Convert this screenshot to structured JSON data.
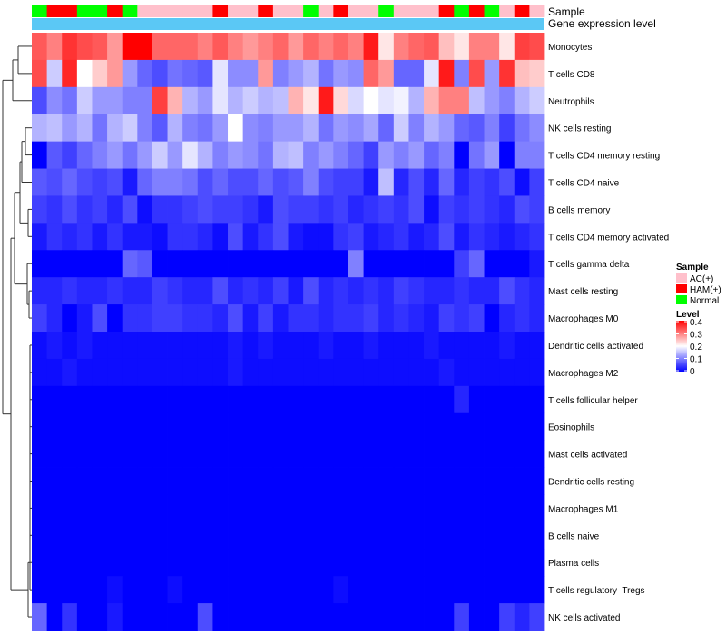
{
  "chart_data": {
    "type": "heatmap",
    "annotation_labels": {
      "sample": "Sample",
      "gene_expression": "Gene expression level"
    },
    "rows": [
      "Monocytes",
      "T cells CD8",
      "Neutrophils",
      "NK cells resting",
      "T cells CD4 memory resting",
      "T cells CD4 naive",
      "B cells memory",
      "T cells CD4 memory activated",
      "T cells gamma delta",
      "Mast cells resting",
      "Macrophages M0",
      "Dendritic cells activated",
      "Macrophages M2",
      "T cells follicular helper",
      "Eosinophils",
      "Mast cells activated",
      "Dendritic cells resting",
      "Macrophages M1",
      "B cells naive",
      "Plasma cells",
      "T cells regulatory  Tregs",
      "NK cells activated"
    ],
    "samples": [
      "Normal",
      "HAM(+)",
      "HAM(+)",
      "Normal",
      "Normal",
      "HAM(+)",
      "Normal",
      "AC(+)",
      "AC(+)",
      "AC(+)",
      "AC(+)",
      "AC(+)",
      "HAM(+)",
      "AC(+)",
      "AC(+)",
      "HAM(+)",
      "AC(+)",
      "AC(+)",
      "Normal",
      "AC(+)",
      "HAM(+)",
      "AC(+)",
      "AC(+)",
      "Normal",
      "AC(+)",
      "AC(+)",
      "AC(+)",
      "HAM(+)",
      "Normal",
      "HAM(+)",
      "Normal",
      "AC(+)",
      "HAM(+)",
      "AC(+)"
    ],
    "sample_colors": {
      "AC(+)": "#ffc0cb",
      "HAM(+)": "#ff0000",
      "Normal": "#00ff00"
    },
    "gene_expression_color": "#5bc8f5",
    "values": [
      [
        0.33,
        0.3,
        0.36,
        0.34,
        0.33,
        0.28,
        0.4,
        0.4,
        0.32,
        0.32,
        0.32,
        0.3,
        0.33,
        0.3,
        0.28,
        0.3,
        0.32,
        0.28,
        0.32,
        0.3,
        0.32,
        0.3,
        0.38,
        0.22,
        0.3,
        0.32,
        0.33,
        0.25,
        0.22,
        0.3,
        0.3,
        0.22,
        0.35,
        0.34
      ],
      [
        0.34,
        0.16,
        0.37,
        0.2,
        0.24,
        0.28,
        0.12,
        0.08,
        0.06,
        0.09,
        0.08,
        0.07,
        0.18,
        0.11,
        0.11,
        0.28,
        0.1,
        0.12,
        0.14,
        0.09,
        0.12,
        0.11,
        0.32,
        0.28,
        0.08,
        0.08,
        0.18,
        0.38,
        0.1,
        0.34,
        0.12,
        0.36,
        0.25,
        0.24
      ],
      [
        0.06,
        0.11,
        0.09,
        0.16,
        0.12,
        0.12,
        0.1,
        0.1,
        0.35,
        0.26,
        0.14,
        0.12,
        0.18,
        0.14,
        0.16,
        0.14,
        0.15,
        0.26,
        0.22,
        0.38,
        0.23,
        0.17,
        0.2,
        0.18,
        0.19,
        0.14,
        0.26,
        0.3,
        0.3,
        0.15,
        0.12,
        0.1,
        0.14,
        0.16
      ],
      [
        0.14,
        0.15,
        0.12,
        0.14,
        0.09,
        0.14,
        0.16,
        0.1,
        0.07,
        0.14,
        0.1,
        0.09,
        0.12,
        0.2,
        0.11,
        0.1,
        0.12,
        0.12,
        0.14,
        0.09,
        0.12,
        0.11,
        0.13,
        0.08,
        0.16,
        0.1,
        0.14,
        0.12,
        0.08,
        0.07,
        0.1,
        0.05,
        0.09,
        0.11
      ],
      [
        0.0,
        0.07,
        0.05,
        0.08,
        0.1,
        0.12,
        0.09,
        0.12,
        0.16,
        0.12,
        0.18,
        0.14,
        0.1,
        0.12,
        0.11,
        0.09,
        0.14,
        0.15,
        0.1,
        0.12,
        0.1,
        0.08,
        0.05,
        0.12,
        0.1,
        0.12,
        0.08,
        0.1,
        0.0,
        0.09,
        0.12,
        0.0,
        0.1,
        0.1
      ],
      [
        0.07,
        0.06,
        0.08,
        0.06,
        0.05,
        0.06,
        0.02,
        0.08,
        0.1,
        0.1,
        0.09,
        0.06,
        0.08,
        0.06,
        0.06,
        0.08,
        0.06,
        0.07,
        0.1,
        0.06,
        0.05,
        0.05,
        0.02,
        0.15,
        0.03,
        0.06,
        0.03,
        0.08,
        0.03,
        0.05,
        0.04,
        0.06,
        0.01,
        0.05
      ],
      [
        0.05,
        0.04,
        0.06,
        0.04,
        0.05,
        0.03,
        0.06,
        0.01,
        0.04,
        0.04,
        0.05,
        0.06,
        0.05,
        0.05,
        0.04,
        0.02,
        0.06,
        0.05,
        0.05,
        0.04,
        0.05,
        0.03,
        0.04,
        0.05,
        0.04,
        0.06,
        0.01,
        0.05,
        0.04,
        0.05,
        0.04,
        0.03,
        0.06,
        0.05
      ],
      [
        0.02,
        0.04,
        0.03,
        0.04,
        0.02,
        0.04,
        0.02,
        0.02,
        0.01,
        0.04,
        0.04,
        0.03,
        0.01,
        0.06,
        0.02,
        0.04,
        0.06,
        0.02,
        0.01,
        0.01,
        0.04,
        0.05,
        0.02,
        0.03,
        0.04,
        0.02,
        0.03,
        0.06,
        0.02,
        0.04,
        0.03,
        0.02,
        0.03,
        0.04
      ],
      [
        0.0,
        0.0,
        0.0,
        0.0,
        0.0,
        0.0,
        0.08,
        0.07,
        0.0,
        0.0,
        0.0,
        0.0,
        0.0,
        0.0,
        0.0,
        0.0,
        0.0,
        0.0,
        0.0,
        0.0,
        0.0,
        0.1,
        0.0,
        0.0,
        0.0,
        0.0,
        0.0,
        0.0,
        0.05,
        0.08,
        0.0,
        0.0,
        0.0,
        0.02
      ],
      [
        0.03,
        0.03,
        0.04,
        0.03,
        0.03,
        0.04,
        0.03,
        0.03,
        0.05,
        0.04,
        0.03,
        0.03,
        0.06,
        0.03,
        0.04,
        0.03,
        0.05,
        0.02,
        0.06,
        0.03,
        0.04,
        0.03,
        0.04,
        0.03,
        0.05,
        0.04,
        0.03,
        0.03,
        0.04,
        0.03,
        0.03,
        0.06,
        0.04,
        0.03
      ],
      [
        0.05,
        0.03,
        0.0,
        0.02,
        0.06,
        0.0,
        0.04,
        0.04,
        0.05,
        0.05,
        0.04,
        0.04,
        0.03,
        0.06,
        0.02,
        0.05,
        0.02,
        0.04,
        0.04,
        0.03,
        0.04,
        0.04,
        0.05,
        0.03,
        0.04,
        0.03,
        0.02,
        0.05,
        0.04,
        0.05,
        0.0,
        0.03,
        0.04,
        0.03
      ],
      [
        0.01,
        0.02,
        0.01,
        0.02,
        0.01,
        0.01,
        0.01,
        0.01,
        0.01,
        0.01,
        0.01,
        0.01,
        0.01,
        0.02,
        0.01,
        0.02,
        0.01,
        0.01,
        0.01,
        0.02,
        0.01,
        0.01,
        0.02,
        0.01,
        0.01,
        0.01,
        0.02,
        0.01,
        0.01,
        0.01,
        0.01,
        0.02,
        0.01,
        0.01
      ],
      [
        0.01,
        0.01,
        0.02,
        0.01,
        0.01,
        0.01,
        0.01,
        0.01,
        0.01,
        0.01,
        0.01,
        0.01,
        0.01,
        0.02,
        0.01,
        0.01,
        0.01,
        0.01,
        0.01,
        0.01,
        0.01,
        0.01,
        0.01,
        0.01,
        0.01,
        0.01,
        0.01,
        0.02,
        0.01,
        0.01,
        0.01,
        0.01,
        0.01,
        0.01
      ],
      [
        0.0,
        0.0,
        0.0,
        0.0,
        0.0,
        0.0,
        0.0,
        0.0,
        0.0,
        0.0,
        0.0,
        0.0,
        0.0,
        0.0,
        0.0,
        0.0,
        0.0,
        0.0,
        0.0,
        0.0,
        0.0,
        0.0,
        0.0,
        0.0,
        0.0,
        0.0,
        0.0,
        0.0,
        0.03,
        0.0,
        0.0,
        0.0,
        0.0,
        0.0
      ],
      [
        0.0,
        0.0,
        0.0,
        0.0,
        0.0,
        0.0,
        0.0,
        0.0,
        0.0,
        0.0,
        0.0,
        0.0,
        0.0,
        0.0,
        0.0,
        0.0,
        0.0,
        0.0,
        0.0,
        0.0,
        0.0,
        0.0,
        0.0,
        0.0,
        0.0,
        0.0,
        0.0,
        0.0,
        0.0,
        0.0,
        0.0,
        0.0,
        0.0,
        0.0
      ],
      [
        0.0,
        0.0,
        0.0,
        0.0,
        0.0,
        0.0,
        0.0,
        0.0,
        0.0,
        0.0,
        0.0,
        0.0,
        0.0,
        0.0,
        0.0,
        0.0,
        0.0,
        0.0,
        0.0,
        0.0,
        0.0,
        0.0,
        0.0,
        0.0,
        0.0,
        0.0,
        0.0,
        0.0,
        0.0,
        0.0,
        0.0,
        0.0,
        0.0,
        0.0
      ],
      [
        0.0,
        0.0,
        0.0,
        0.0,
        0.0,
        0.0,
        0.0,
        0.0,
        0.0,
        0.0,
        0.0,
        0.0,
        0.0,
        0.0,
        0.0,
        0.0,
        0.0,
        0.0,
        0.0,
        0.0,
        0.0,
        0.0,
        0.0,
        0.0,
        0.0,
        0.0,
        0.0,
        0.0,
        0.0,
        0.0,
        0.0,
        0.0,
        0.0,
        0.0
      ],
      [
        0.0,
        0.0,
        0.0,
        0.0,
        0.0,
        0.0,
        0.0,
        0.0,
        0.0,
        0.0,
        0.0,
        0.0,
        0.0,
        0.0,
        0.0,
        0.0,
        0.0,
        0.0,
        0.0,
        0.0,
        0.0,
        0.0,
        0.0,
        0.0,
        0.0,
        0.0,
        0.0,
        0.0,
        0.0,
        0.0,
        0.0,
        0.0,
        0.0,
        0.0
      ],
      [
        0.0,
        0.0,
        0.0,
        0.0,
        0.0,
        0.0,
        0.0,
        0.0,
        0.0,
        0.0,
        0.0,
        0.0,
        0.0,
        0.0,
        0.0,
        0.0,
        0.0,
        0.0,
        0.0,
        0.0,
        0.0,
        0.0,
        0.0,
        0.0,
        0.0,
        0.0,
        0.0,
        0.0,
        0.0,
        0.0,
        0.0,
        0.0,
        0.0,
        0.0
      ],
      [
        0.0,
        0.0,
        0.0,
        0.0,
        0.0,
        0.0,
        0.0,
        0.0,
        0.0,
        0.0,
        0.0,
        0.0,
        0.0,
        0.0,
        0.0,
        0.0,
        0.0,
        0.0,
        0.0,
        0.0,
        0.0,
        0.0,
        0.0,
        0.0,
        0.0,
        0.0,
        0.0,
        0.0,
        0.0,
        0.0,
        0.0,
        0.0,
        0.0,
        0.0
      ],
      [
        0.0,
        0.0,
        0.0,
        0.0,
        0.0,
        0.01,
        0.0,
        0.0,
        0.0,
        0.01,
        0.0,
        0.0,
        0.0,
        0.0,
        0.0,
        0.0,
        0.0,
        0.0,
        0.0,
        0.0,
        0.01,
        0.0,
        0.0,
        0.0,
        0.0,
        0.0,
        0.0,
        0.0,
        0.0,
        0.0,
        0.0,
        0.0,
        0.0,
        0.0
      ],
      [
        0.08,
        0.0,
        0.04,
        0.0,
        0.0,
        0.02,
        0.0,
        0.0,
        0.0,
        0.0,
        0.0,
        0.06,
        0.0,
        0.0,
        0.0,
        0.0,
        0.0,
        0.0,
        0.0,
        0.0,
        0.0,
        0.0,
        0.0,
        0.0,
        0.0,
        0.0,
        0.0,
        0.0,
        0.05,
        0.0,
        0.0,
        0.05,
        0.03,
        0.05
      ]
    ],
    "color_scale": {
      "min": 0,
      "mid": 0.2,
      "max": 0.4,
      "low_color": "#0000ff",
      "mid_color": "#ffffff",
      "high_color": "#ff0000"
    },
    "legend_sample": {
      "title": "Sample",
      "entries": [
        "AC(+)",
        "HAM(+)",
        "Normal"
      ]
    },
    "legend_level": {
      "title": "Level",
      "ticks": [
        "0.4",
        "0.3",
        "0.2",
        "0.1",
        "0"
      ]
    },
    "row_dendrogram": true
  }
}
